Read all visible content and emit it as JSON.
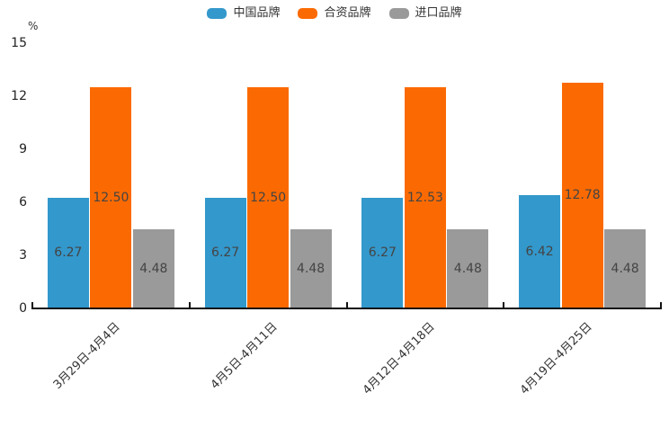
{
  "chart_data": {
    "type": "bar",
    "title": "",
    "categories": [
      "3月29日-4月4日",
      "4月5日-4月11日",
      "4月12日-4月18日",
      "4月19日-4月25日"
    ],
    "series": [
      {
        "name": "中国品牌",
        "color": "#3398cc",
        "values": [
          6.27,
          6.27,
          6.27,
          6.42
        ]
      },
      {
        "name": "合资品牌",
        "color": "#fb6a02",
        "values": [
          12.5,
          12.5,
          12.53,
          12.78
        ]
      },
      {
        "name": "进口品牌",
        "color": "#9a9a9a",
        "values": [
          4.48,
          4.48,
          4.48,
          4.48
        ]
      }
    ],
    "value_labels": {
      "中国品牌": [
        "6.27",
        "6.27",
        "6.27",
        "6.42"
      ],
      "合资品牌": [
        "12.50",
        "12.50",
        "12.53",
        "12.78"
      ],
      "进口品牌": [
        "4.48",
        "4.48",
        "4.48",
        "4.48"
      ]
    },
    "xlabel": "",
    "ylabel": "",
    "y_axis": {
      "unit": "%",
      "min": 0,
      "max": 15,
      "ticks": [
        0,
        3,
        6,
        9,
        12,
        15
      ]
    },
    "ylim": [
      0,
      15
    ],
    "grid": false,
    "legend_position": "top",
    "x_label_rotation_deg": 45,
    "colors": {
      "background": "#ffffff",
      "axis_line": "#111111",
      "tick_label": "#222222",
      "value_label": "#444444",
      "legend_label": "#333333"
    }
  }
}
